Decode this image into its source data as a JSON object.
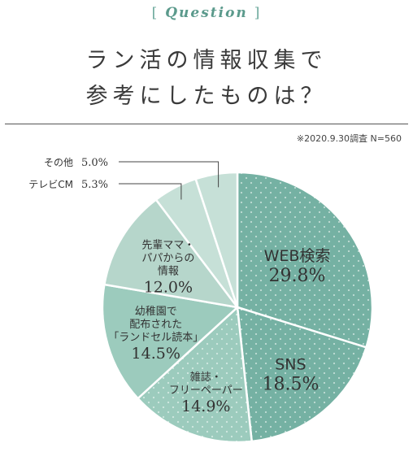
{
  "header": {
    "question_open": "[",
    "question_word": "Question",
    "question_close": "]",
    "title_line1": "ラン活の情報収集で",
    "title_line2": "参考にしたものは？",
    "survey_note": "※2020.9.30調査 N=560"
  },
  "colors": {
    "dark_teal": "#75b1a3",
    "mid_teal": "#9ccbbd",
    "light_teal": "#b6d6cb",
    "pale_teal": "#c6e0d7",
    "label_text": "#333333"
  },
  "chart_data": {
    "type": "pie",
    "title": "ラン活の情報収集で参考にしたものは？",
    "slices": [
      {
        "label": "WEB検索",
        "value": 29.8,
        "value_text": "29.8%",
        "color": "#75b1a3",
        "dotted": true
      },
      {
        "label": "SNS",
        "value": 18.5,
        "value_text": "18.5%",
        "color": "#75b1a3",
        "dotted": true
      },
      {
        "label": "雑誌・フリーペーパー",
        "value": 14.9,
        "value_text": "14.9%",
        "color": "#9ccbbd",
        "dotted": true
      },
      {
        "label": "幼稚園で配布された「ランドセル読本」",
        "value": 14.5,
        "value_text": "14.5%",
        "color": "#9ccbbd",
        "dotted": false
      },
      {
        "label": "先輩ママ・パパからの情報",
        "value": 12.0,
        "value_text": "12.0%",
        "color": "#b6d6cb",
        "dotted": false
      },
      {
        "label": "テレビCM",
        "value": 5.3,
        "value_text": "5.3%",
        "color": "#c6e0d7",
        "dotted": false
      },
      {
        "label": "その他",
        "value": 5.0,
        "value_text": "5.0%",
        "color": "#c6e0d7",
        "dotted": false
      }
    ],
    "label_lines": {
      "WEB検索": [
        "WEB検索"
      ],
      "SNS": [
        "SNS"
      ],
      "雑誌・フリーペーパー": [
        "雑誌・",
        "フリーペーパー"
      ],
      "幼稚園で配布された「ランドセル読本」": [
        "幼稚園で",
        "配布された",
        "「ランドセル読本」"
      ],
      "先輩ママ・パパからの情報": [
        "先輩ママ・",
        "パパからの",
        "情報"
      ]
    },
    "callouts": {
      "テレビCM": "テレビCM",
      "その他": "その他"
    }
  }
}
